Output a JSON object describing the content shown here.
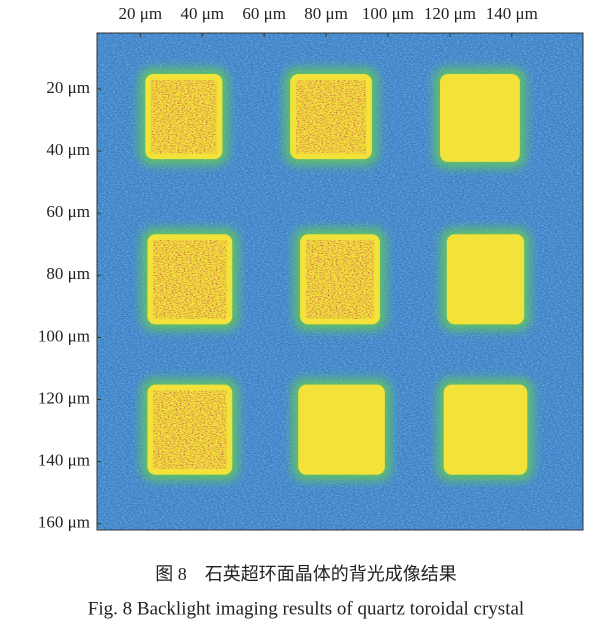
{
  "chart_data": {
    "type": "heatmap",
    "xlim": [
      6,
      163
    ],
    "ylim": [
      2,
      162
    ],
    "xticks": [
      {
        "value": 20,
        "label": "20 μm"
      },
      {
        "value": 40,
        "label": "40 μm"
      },
      {
        "value": 60,
        "label": "60 μm"
      },
      {
        "value": 80,
        "label": "80 μm"
      },
      {
        "value": 100,
        "label": "100 μm"
      },
      {
        "value": 120,
        "label": "120 μm"
      },
      {
        "value": 140,
        "label": "140 μm"
      }
    ],
    "yticks": [
      {
        "value": 20,
        "label": "20 μm"
      },
      {
        "value": 40,
        "label": "40 μm"
      },
      {
        "value": 60,
        "label": "60 μm"
      },
      {
        "value": 80,
        "label": "80 μm"
      },
      {
        "value": 100,
        "label": "100 μm"
      },
      {
        "value": 120,
        "label": "120 μm"
      },
      {
        "value": 140,
        "label": "140 μm"
      },
      {
        "value": 160,
        "label": "160 μm"
      }
    ],
    "background_color": "#3d7fc2",
    "regions": [
      {
        "x": [
          21.6,
          46.5
        ],
        "y": [
          15.2,
          42.6
        ],
        "color": "#f2e23a",
        "core": "#9a2a1e"
      },
      {
        "x": [
          68.4,
          94.8
        ],
        "y": [
          15.2,
          42.6
        ],
        "color": "#f2e23a",
        "core": "#9a2a1e"
      },
      {
        "x": [
          116.8,
          142.6
        ],
        "y": [
          15.2,
          43.5
        ],
        "color": "#f2e23a",
        "core": null
      },
      {
        "x": [
          22.3,
          49.7
        ],
        "y": [
          66.8,
          95.8
        ],
        "color": "#f2e23a",
        "core": "#9a2a1e"
      },
      {
        "x": [
          71.6,
          97.4
        ],
        "y": [
          66.8,
          95.8
        ],
        "color": "#f2e23a",
        "core": "#9a2a1e"
      },
      {
        "x": [
          119,
          144
        ],
        "y": [
          66.8,
          95.8
        ],
        "color": "#f2e23a",
        "core": null
      },
      {
        "x": [
          22.3,
          49.7
        ],
        "y": [
          115.2,
          144.2
        ],
        "color": "#f2e23a",
        "core": "#8f1e18"
      },
      {
        "x": [
          71,
          99
        ],
        "y": [
          115.2,
          144.2
        ],
        "color": "#f2e23a",
        "core": null
      },
      {
        "x": [
          118,
          145
        ],
        "y": [
          115.2,
          144.2
        ],
        "color": "#f2e23a",
        "core": null
      }
    ],
    "caption_cn": "图 8　石英超环面晶体的背光成像结果",
    "caption": "Fig. 8  Backlight imaging results of quartz toroidal crystal"
  }
}
